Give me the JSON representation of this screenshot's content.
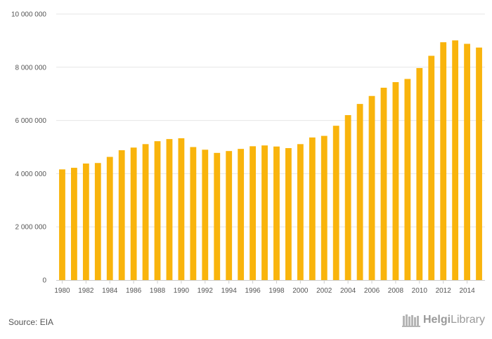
{
  "chart_data": {
    "type": "bar",
    "title": "",
    "xlabel": "",
    "ylabel": "",
    "ylim": [
      0,
      10000000
    ],
    "yticks": [
      0,
      2000000,
      4000000,
      6000000,
      8000000,
      10000000
    ],
    "ytick_labels": [
      "0",
      "2 000 000",
      "4 000 000",
      "6 000 000",
      "8 000 000",
      "10 000 000"
    ],
    "grid": true,
    "categories": [
      1980,
      1981,
      1982,
      1983,
      1984,
      1985,
      1986,
      1987,
      1988,
      1989,
      1990,
      1991,
      1992,
      1993,
      1994,
      1995,
      1996,
      1997,
      1998,
      1999,
      2000,
      2001,
      2002,
      2003,
      2004,
      2005,
      2006,
      2007,
      2008,
      2009,
      2010,
      2011,
      2012,
      2013,
      2014,
      2015
    ],
    "xtick_labels": [
      "1980",
      "1982",
      "1984",
      "1986",
      "1988",
      "1990",
      "1992",
      "1994",
      "1996",
      "1998",
      "2000",
      "2002",
      "2004",
      "2006",
      "2008",
      "2010",
      "2012",
      "2014"
    ],
    "values": [
      4160000,
      4220000,
      4380000,
      4400000,
      4630000,
      4880000,
      4980000,
      5110000,
      5220000,
      5300000,
      5330000,
      5000000,
      4900000,
      4780000,
      4850000,
      4930000,
      5030000,
      5060000,
      5020000,
      4960000,
      5110000,
      5360000,
      5420000,
      5800000,
      6200000,
      6620000,
      6920000,
      7230000,
      7440000,
      7560000,
      7970000,
      8430000,
      8940000,
      9010000,
      8880000,
      8740000
    ],
    "bar_color": "#f9b40c"
  },
  "footer": {
    "source": "Source: EIA",
    "logo_brand": "Helgi",
    "logo_suffix": "Library",
    "logo_icon": "bookshelf-icon"
  }
}
